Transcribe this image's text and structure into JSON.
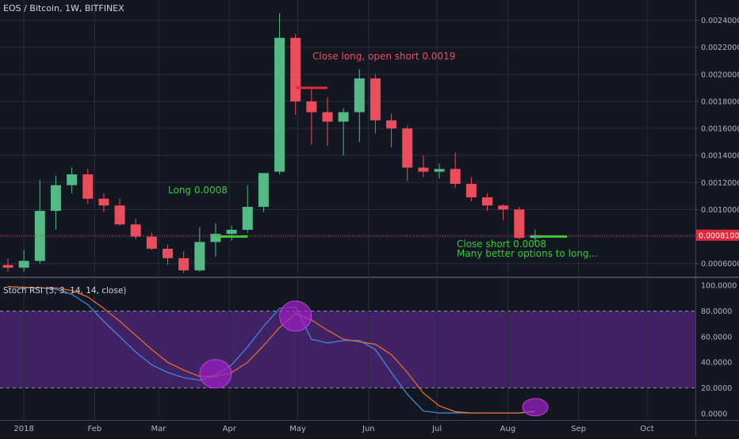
{
  "header": {
    "title": "EOS / Bitcoin, 1W, BITFINEX"
  },
  "colors": {
    "background": "#131722",
    "grid": "#2a2e39",
    "up": "#53b987",
    "down": "#eb4d5c",
    "stoch_k": "#3f8fe8",
    "stoch_d": "#f0722c",
    "band_fill": "#4a2470",
    "circle": "#a020c8",
    "last_price_bg": "#e0293a"
  },
  "indicator": {
    "title": "Stoch RSI (3, 3, 14, 14, close)"
  },
  "price_axis": {
    "ticks": [
      "0.00060000",
      "0.00080000",
      "0.00100000",
      "0.00120000",
      "0.00140000",
      "0.00160000",
      "0.00180000",
      "0.00200000",
      "0.00220000",
      "0.00240000"
    ],
    "last_price": "0.00081005"
  },
  "stoch_axis": {
    "ticks": [
      "0.0000",
      "20.0000",
      "40.0000",
      "60.0000",
      "80.0000",
      "100.0000"
    ]
  },
  "time_axis": {
    "labels": [
      "2018",
      "Feb",
      "Mar",
      "Apr",
      "May",
      "Jun",
      "Jul",
      "Aug",
      "Sep",
      "Oct"
    ]
  },
  "annotations": [
    {
      "id": "close-long",
      "text": "Close long, open short 0.0019",
      "color": "#eb4d5c"
    },
    {
      "id": "long",
      "text": "Long 0.0008",
      "color": "#33cc33"
    },
    {
      "id": "close-short-1",
      "text": "Close short 0.0008",
      "color": "#33cc33"
    },
    {
      "id": "close-short-2",
      "text": "Many better options to long...",
      "color": "#33cc33"
    }
  ],
  "chart_data": [
    {
      "type": "candlestick",
      "title": "EOS / Bitcoin, 1W, BITFINEX",
      "ylim": [
        0.00051,
        0.00255
      ],
      "candles": [
        {
          "week": "2017-12-25",
          "o": 0.00059,
          "h": 0.00064,
          "l": 0.00054,
          "c": 0.00057
        },
        {
          "week": "2018-01-01",
          "o": 0.00057,
          "h": 0.0007,
          "l": 0.00054,
          "c": 0.00062
        },
        {
          "week": "2018-01-08",
          "o": 0.00062,
          "h": 0.00122,
          "l": 0.0006,
          "c": 0.00099
        },
        {
          "week": "2018-01-15",
          "o": 0.00099,
          "h": 0.00125,
          "l": 0.00085,
          "c": 0.00118
        },
        {
          "week": "2018-01-22",
          "o": 0.00118,
          "h": 0.00131,
          "l": 0.00112,
          "c": 0.00126
        },
        {
          "week": "2018-01-29",
          "o": 0.00126,
          "h": 0.0013,
          "l": 0.00104,
          "c": 0.00108
        },
        {
          "week": "2018-02-05",
          "o": 0.00108,
          "h": 0.00112,
          "l": 0.00098,
          "c": 0.00103
        },
        {
          "week": "2018-02-12",
          "o": 0.00103,
          "h": 0.00108,
          "l": 0.00088,
          "c": 0.00089
        },
        {
          "week": "2018-02-19",
          "o": 0.00089,
          "h": 0.00093,
          "l": 0.00078,
          "c": 0.0008
        },
        {
          "week": "2018-02-26",
          "o": 0.0008,
          "h": 0.00083,
          "l": 0.0007,
          "c": 0.00071
        },
        {
          "week": "2018-03-05",
          "o": 0.00071,
          "h": 0.00074,
          "l": 0.00059,
          "c": 0.00064
        },
        {
          "week": "2018-03-12",
          "o": 0.00064,
          "h": 0.00069,
          "l": 0.00053,
          "c": 0.00055
        },
        {
          "week": "2018-03-19",
          "o": 0.00055,
          "h": 0.00087,
          "l": 0.00054,
          "c": 0.00076
        },
        {
          "week": "2018-03-26",
          "o": 0.00076,
          "h": 0.0009,
          "l": 0.00065,
          "c": 0.00082
        },
        {
          "week": "2018-04-02",
          "o": 0.00082,
          "h": 0.00088,
          "l": 0.00077,
          "c": 0.00085
        },
        {
          "week": "2018-04-09",
          "o": 0.00085,
          "h": 0.00118,
          "l": 0.00083,
          "c": 0.00102
        },
        {
          "week": "2018-04-16",
          "o": 0.00102,
          "h": 0.00127,
          "l": 0.00098,
          "c": 0.00127
        },
        {
          "week": "2018-04-23",
          "o": 0.00128,
          "h": 0.00245,
          "l": 0.00126,
          "c": 0.00227
        },
        {
          "week": "2018-04-30",
          "o": 0.00227,
          "h": 0.0023,
          "l": 0.0017,
          "c": 0.0018
        },
        {
          "week": "2018-05-07",
          "o": 0.0018,
          "h": 0.00189,
          "l": 0.00148,
          "c": 0.00172
        },
        {
          "week": "2018-05-14",
          "o": 0.00172,
          "h": 0.00183,
          "l": 0.00147,
          "c": 0.00165
        },
        {
          "week": "2018-05-21",
          "o": 0.00165,
          "h": 0.00175,
          "l": 0.0014,
          "c": 0.00172
        },
        {
          "week": "2018-05-28",
          "o": 0.00172,
          "h": 0.00204,
          "l": 0.0015,
          "c": 0.00197
        },
        {
          "week": "2018-06-04",
          "o": 0.00197,
          "h": 0.002,
          "l": 0.00156,
          "c": 0.00166
        },
        {
          "week": "2018-06-11",
          "o": 0.00166,
          "h": 0.00171,
          "l": 0.00146,
          "c": 0.0016
        },
        {
          "week": "2018-06-18",
          "o": 0.0016,
          "h": 0.00162,
          "l": 0.00121,
          "c": 0.00131
        },
        {
          "week": "2018-06-25",
          "o": 0.00131,
          "h": 0.0014,
          "l": 0.00124,
          "c": 0.00128
        },
        {
          "week": "2018-07-02",
          "o": 0.00128,
          "h": 0.00134,
          "l": 0.00123,
          "c": 0.0013
        },
        {
          "week": "2018-07-09",
          "o": 0.0013,
          "h": 0.00142,
          "l": 0.00116,
          "c": 0.00119
        },
        {
          "week": "2018-07-16",
          "o": 0.00119,
          "h": 0.00124,
          "l": 0.00106,
          "c": 0.00109
        },
        {
          "week": "2018-07-23",
          "o": 0.00109,
          "h": 0.00112,
          "l": 0.00099,
          "c": 0.00103
        },
        {
          "week": "2018-07-30",
          "o": 0.00103,
          "h": 0.00104,
          "l": 0.00092,
          "c": 0.001
        },
        {
          "week": "2018-08-06",
          "o": 0.001,
          "h": 0.00102,
          "l": 0.00078,
          "c": 0.00079
        },
        {
          "week": "2018-08-13",
          "o": 0.00079,
          "h": 0.00085,
          "l": 0.00076,
          "c": 0.00081
        }
      ],
      "horizontal_markers": [
        {
          "price": 0.0019,
          "from": "2018-04-30",
          "to": "2018-05-14",
          "color": "#e0293a"
        },
        {
          "price": 0.0008,
          "from": "2018-03-26",
          "to": "2018-04-09",
          "color": "#33cc33"
        },
        {
          "price": 0.0008,
          "from": "2018-08-13",
          "to": "2018-08-27",
          "color": "#33cc33"
        }
      ],
      "last_price": 0.00081005
    },
    {
      "type": "line",
      "title": "Stoch RSI (3, 3, 14, 14, close)",
      "ylim": [
        -5,
        105
      ],
      "band": [
        20,
        80
      ],
      "series": [
        {
          "color": "#3f8fe8",
          "points": [
            [
              "2017-12-25",
              99
            ],
            [
              "2018-01-01",
              98
            ],
            [
              "2018-01-08",
              98
            ],
            [
              "2018-01-15",
              97
            ],
            [
              "2018-01-22",
              93
            ],
            [
              "2018-01-29",
              85
            ],
            [
              "2018-02-05",
              72
            ],
            [
              "2018-02-12",
              60
            ],
            [
              "2018-02-19",
              48
            ],
            [
              "2018-02-26",
              38
            ],
            [
              "2018-03-05",
              32
            ],
            [
              "2018-03-12",
              28
            ],
            [
              "2018-03-19",
              26
            ],
            [
              "2018-03-26",
              30
            ],
            [
              "2018-04-02",
              38
            ],
            [
              "2018-04-09",
              52
            ],
            [
              "2018-04-16",
              68
            ],
            [
              "2018-04-23",
              82
            ],
            [
              "2018-04-30",
              83
            ],
            [
              "2018-05-07",
              58
            ],
            [
              "2018-05-14",
              55
            ],
            [
              "2018-05-21",
              57
            ],
            [
              "2018-05-28",
              57
            ],
            [
              "2018-06-04",
              50
            ],
            [
              "2018-06-11",
              32
            ],
            [
              "2018-06-18",
              15
            ],
            [
              "2018-06-25",
              2
            ],
            [
              "2018-07-02",
              0.5
            ],
            [
              "2018-07-09",
              0.5
            ],
            [
              "2018-07-16",
              0.5
            ],
            [
              "2018-07-23",
              0.5
            ],
            [
              "2018-07-30",
              0.5
            ],
            [
              "2018-08-06",
              0.5
            ],
            [
              "2018-08-13",
              2
            ]
          ]
        },
        {
          "color": "#f0722c",
          "points": [
            [
              "2017-12-25",
              99
            ],
            [
              "2018-01-01",
              98.5
            ],
            [
              "2018-01-08",
              98
            ],
            [
              "2018-01-15",
              98
            ],
            [
              "2018-01-22",
              96
            ],
            [
              "2018-01-29",
              91
            ],
            [
              "2018-02-05",
              82
            ],
            [
              "2018-02-12",
              72
            ],
            [
              "2018-02-19",
              61
            ],
            [
              "2018-02-26",
              50
            ],
            [
              "2018-03-05",
              40
            ],
            [
              "2018-03-12",
              34
            ],
            [
              "2018-03-19",
              29
            ],
            [
              "2018-03-26",
              29
            ],
            [
              "2018-04-02",
              32
            ],
            [
              "2018-04-09",
              40
            ],
            [
              "2018-04-16",
              53
            ],
            [
              "2018-04-23",
              67
            ],
            [
              "2018-04-30",
              78
            ],
            [
              "2018-05-07",
              73
            ],
            [
              "2018-05-14",
              65
            ],
            [
              "2018-05-21",
              58
            ],
            [
              "2018-05-28",
              56
            ],
            [
              "2018-06-04",
              54
            ],
            [
              "2018-06-11",
              46
            ],
            [
              "2018-06-18",
              32
            ],
            [
              "2018-06-25",
              16
            ],
            [
              "2018-07-02",
              6
            ],
            [
              "2018-07-09",
              1.5
            ],
            [
              "2018-07-16",
              0.5
            ],
            [
              "2018-07-23",
              0.5
            ],
            [
              "2018-07-30",
              0.5
            ],
            [
              "2018-08-06",
              0.5
            ],
            [
              "2018-08-13",
              1.5
            ]
          ]
        }
      ],
      "highlights": [
        {
          "at": "2018-03-26",
          "value": 31
        },
        {
          "at": "2018-04-30",
          "value": 76
        },
        {
          "at": "2018-08-13",
          "value": 5
        }
      ]
    }
  ]
}
